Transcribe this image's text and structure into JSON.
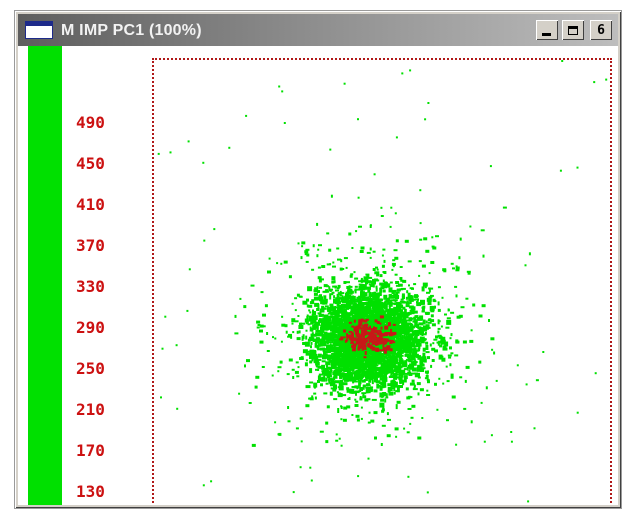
{
  "window": {
    "title": "M IMP PC1 (100%)",
    "controls": {
      "minimize": "_",
      "maximize": "□",
      "restore": "6"
    }
  },
  "scale": {
    "labels": [
      "490",
      "450",
      "410",
      "370",
      "330",
      "290",
      "250",
      "210",
      "170",
      "130"
    ],
    "bar_color": "#00e000",
    "label_color": "#cc1111"
  },
  "scatter": {
    "core_color": "#00e000",
    "dense_color": "#c81818",
    "frame_color": "#b01818"
  }
}
